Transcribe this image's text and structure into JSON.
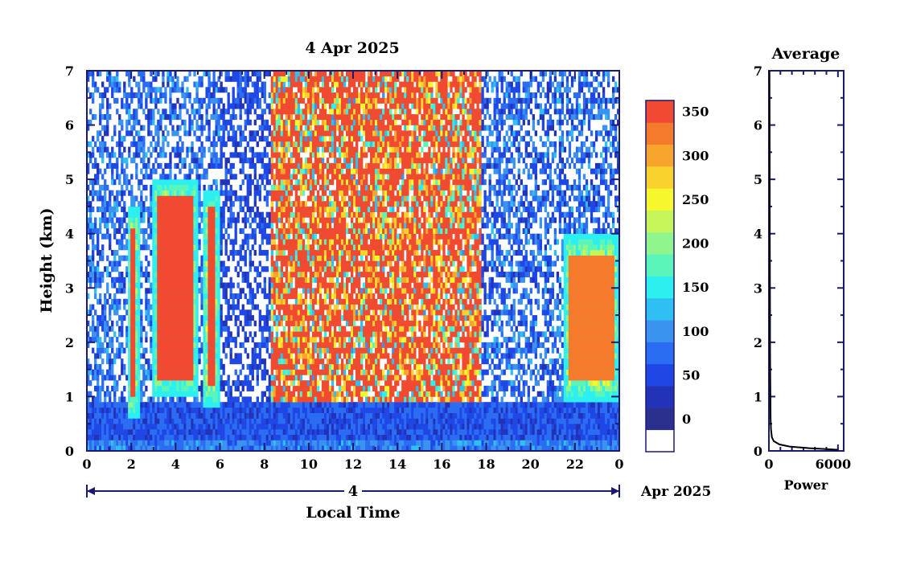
{
  "title": "4 Apr 2025",
  "colorbar": {
    "levels": [
      0,
      25,
      50,
      75,
      100,
      125,
      150,
      175,
      200,
      225,
      250,
      275,
      300,
      325,
      350,
      375
    ],
    "tick_labels": [
      "0",
      "50",
      "100",
      "150",
      "200",
      "250",
      "300",
      "350"
    ],
    "colors": [
      "#ffffff",
      "#2b2f8e",
      "#2233b8",
      "#1f47e6",
      "#2b6df2",
      "#3a93ee",
      "#2fc0f2",
      "#2cf0f0",
      "#5cf5b9",
      "#8ff58c",
      "#c6f55a",
      "#f7f72e",
      "#f9d22e",
      "#f7a52c",
      "#f47a2c",
      "#f04a30"
    ]
  },
  "main_panel": {
    "xlabel": "Local Time",
    "ylabel": "Height (km)",
    "x_tick_labels": [
      "0",
      "2",
      "4",
      "6",
      "8",
      "10",
      "12",
      "14",
      "16",
      "18",
      "20",
      "22",
      "0"
    ],
    "y_tick_labels": [
      "0",
      "1",
      "2",
      "3",
      "4",
      "5",
      "6",
      "7"
    ],
    "day_label": "4",
    "date_suffix": "Apr 2025"
  },
  "side_panel": {
    "title": "Average",
    "xlabel": "Power",
    "x_tick_labels": [
      "0",
      "6000"
    ],
    "y_tick_labels": [
      "0",
      "1",
      "2",
      "3",
      "4",
      "5",
      "6",
      "7"
    ]
  },
  "chart_data": [
    {
      "type": "heatmap",
      "title": "4 Apr 2025",
      "xlabel": "Local Time",
      "ylabel": "Height (km)",
      "xlim": [
        0,
        24
      ],
      "ylim": [
        0,
        7
      ],
      "color_scale": "power, 0 to 375",
      "regions": [
        {
          "x": [
            1.8,
            2.4
          ],
          "y": [
            0.6,
            4.5
          ],
          "value": 360
        },
        {
          "x": [
            3.0,
            5.0
          ],
          "y": [
            1.0,
            5.0
          ],
          "value": 360
        },
        {
          "x": [
            5.2,
            6.0
          ],
          "y": [
            0.8,
            4.8
          ],
          "value": 360
        },
        {
          "x": [
            8.3,
            17.8
          ],
          "y": [
            0.9,
            7.0
          ],
          "value": 350
        },
        {
          "x": [
            21.5,
            24.0
          ],
          "y": [
            0.9,
            4.0
          ],
          "value": 340
        },
        {
          "x": [
            0.0,
            24.0
          ],
          "y": [
            0.0,
            0.9
          ],
          "value": 60
        }
      ]
    },
    {
      "type": "line",
      "title": "Average",
      "xlabel": "Power",
      "ylabel": "Height (km)",
      "xlim": [
        0,
        6500
      ],
      "ylim": [
        0,
        7
      ],
      "x": [
        6000,
        3500,
        1800,
        900,
        420,
        260,
        180,
        150,
        130,
        115,
        100,
        95,
        90,
        80,
        70,
        60,
        55,
        50
      ],
      "y": [
        0.02,
        0.05,
        0.08,
        0.12,
        0.18,
        0.25,
        0.4,
        0.6,
        1.0,
        1.5,
        2.0,
        2.5,
        3.0,
        4.0,
        5.0,
        6.0,
        6.5,
        7.0
      ]
    }
  ]
}
